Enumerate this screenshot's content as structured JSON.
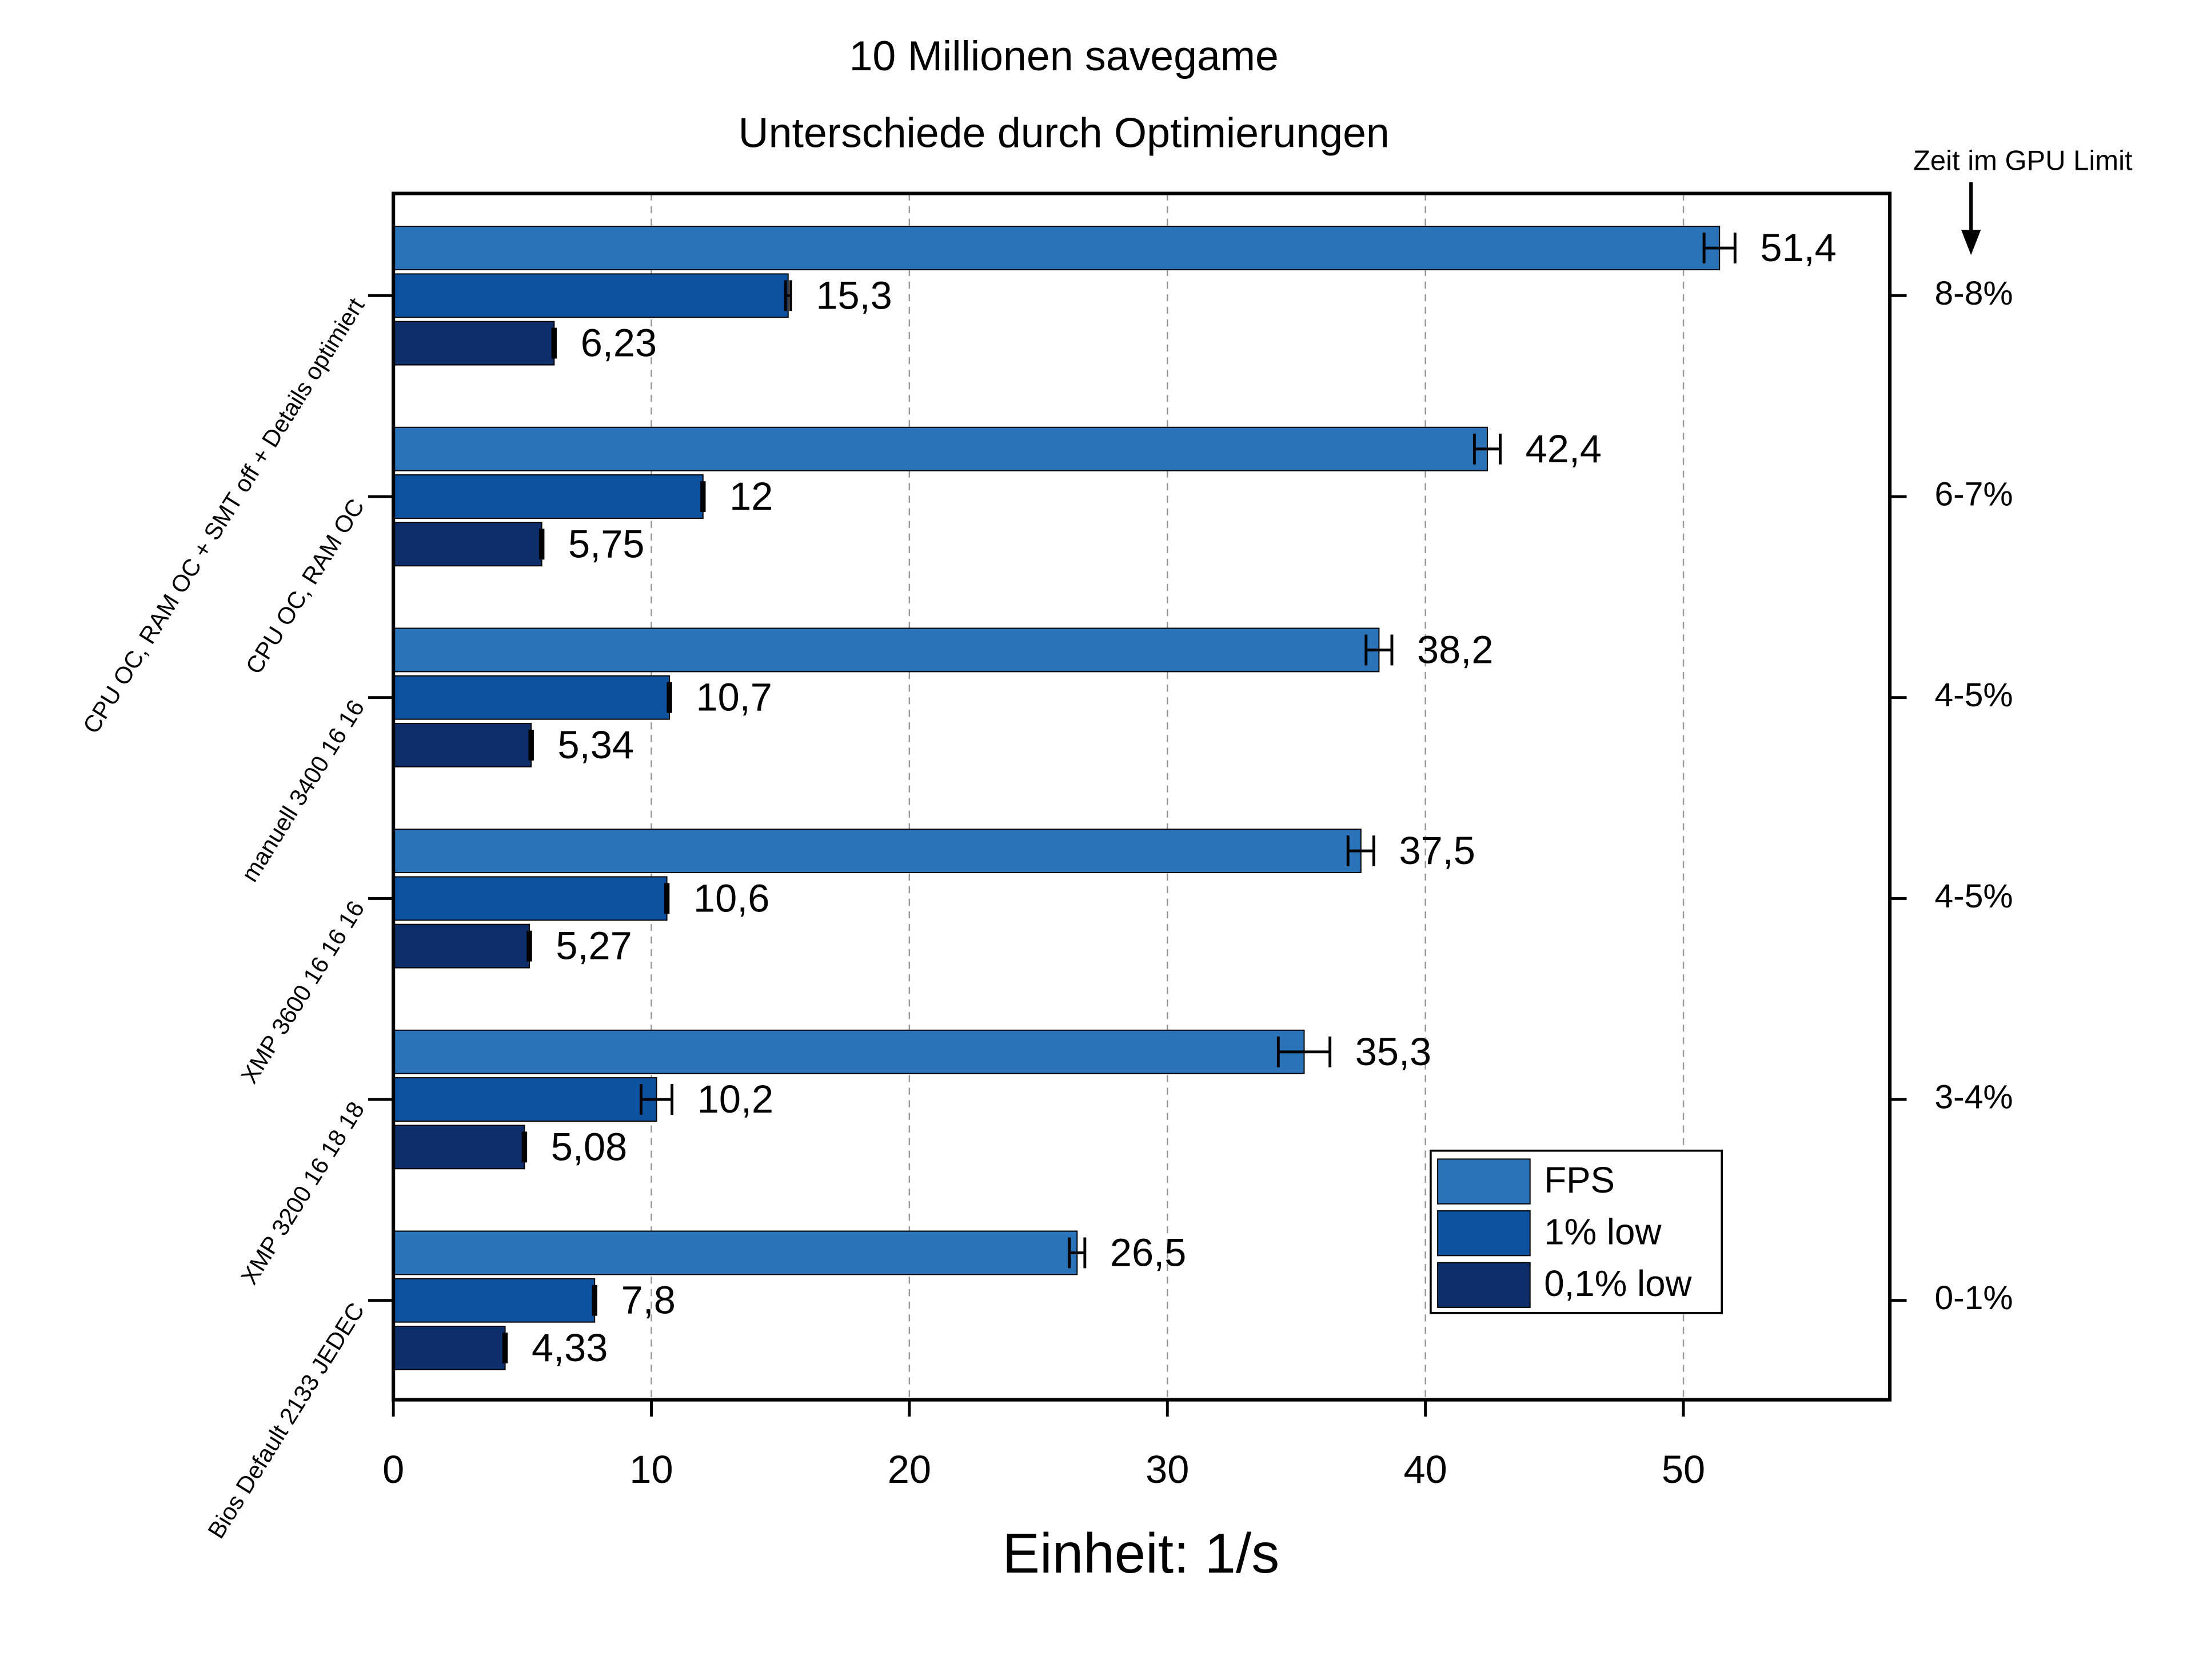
{
  "chart_data": {
    "type": "hbar",
    "title": "10 Millionen savegame",
    "subtitle": "Unterschiede durch Optimierungen",
    "x_label": "Einheit: 1/s",
    "categories": [
      "CPU OC, RAM OC + SMT off + Details optimiert",
      "CPU OC, RAM OC",
      "manuell 3400 16 16",
      "XMP 3600 16 16 16",
      "XMP 3200 16 18 18",
      "Bios Default 2133 JEDEC"
    ],
    "series": [
      {
        "name": "FPS",
        "color": "#2b73b8",
        "values": [
          51.4,
          42.4,
          38.2,
          37.5,
          35.3,
          26.5
        ],
        "value_labels": [
          "51,4",
          "42,4",
          "38,2",
          "37,5",
          "35,3",
          "26,5"
        ],
        "errors": [
          0.6,
          0.5,
          0.5,
          0.5,
          1.0,
          0.3
        ]
      },
      {
        "name": "1% low",
        "color": "#0c52a0",
        "values": [
          15.3,
          12,
          10.7,
          10.6,
          10.2,
          7.8
        ],
        "value_labels": [
          "15,3",
          "12",
          "10,7",
          "10,6",
          "10,2",
          "7,8"
        ],
        "errors": [
          0.1,
          0.05,
          0.05,
          0.05,
          0.6,
          0.05
        ]
      },
      {
        "name": "0,1% low",
        "color": "#0d2e6b",
        "values": [
          6.23,
          5.75,
          5.34,
          5.27,
          5.08,
          4.33
        ],
        "value_labels": [
          "6,23",
          "5,75",
          "5,34",
          "5,27",
          "5,08",
          "4,33"
        ],
        "errors": [
          0.05,
          0.05,
          0.05,
          0.05,
          0.05,
          0.05
        ]
      }
    ],
    "xlim": [
      0,
      58
    ],
    "xticks": [
      0,
      10,
      20,
      30,
      40,
      50
    ],
    "grid": true,
    "legend": "lower-right",
    "right_axis_title": "Zeit im GPU Limit",
    "right_labels": [
      "8-8%",
      "6-7%",
      "4-5%",
      "4-5%",
      "3-4%",
      "0-1%"
    ]
  }
}
